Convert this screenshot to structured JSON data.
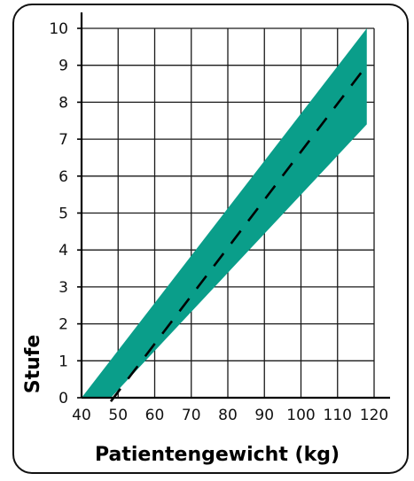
{
  "chart_data": {
    "type": "area",
    "title": "",
    "xlabel": "Patientengewicht (kg)",
    "ylabel": "Stufe",
    "xlim": [
      40,
      120
    ],
    "ylim": [
      0,
      10
    ],
    "x_ticks": [
      40,
      50,
      60,
      70,
      80,
      90,
      100,
      110,
      120
    ],
    "y_ticks": [
      0,
      1,
      2,
      3,
      4,
      5,
      6,
      7,
      8,
      9,
      10
    ],
    "grid": true,
    "series": [
      {
        "kind": "band",
        "color": "#0a9e8a",
        "lower": [
          {
            "x": 48,
            "y": 0
          },
          {
            "x": 118,
            "y": 7.4
          }
        ],
        "upper": [
          {
            "x": 40,
            "y": 0
          },
          {
            "x": 118,
            "y": 10
          }
        ]
      },
      {
        "kind": "dashed-line",
        "color": "#000000",
        "points": [
          {
            "x": 48,
            "y": -0.1
          },
          {
            "x": 118,
            "y": 9.0
          }
        ]
      }
    ]
  }
}
